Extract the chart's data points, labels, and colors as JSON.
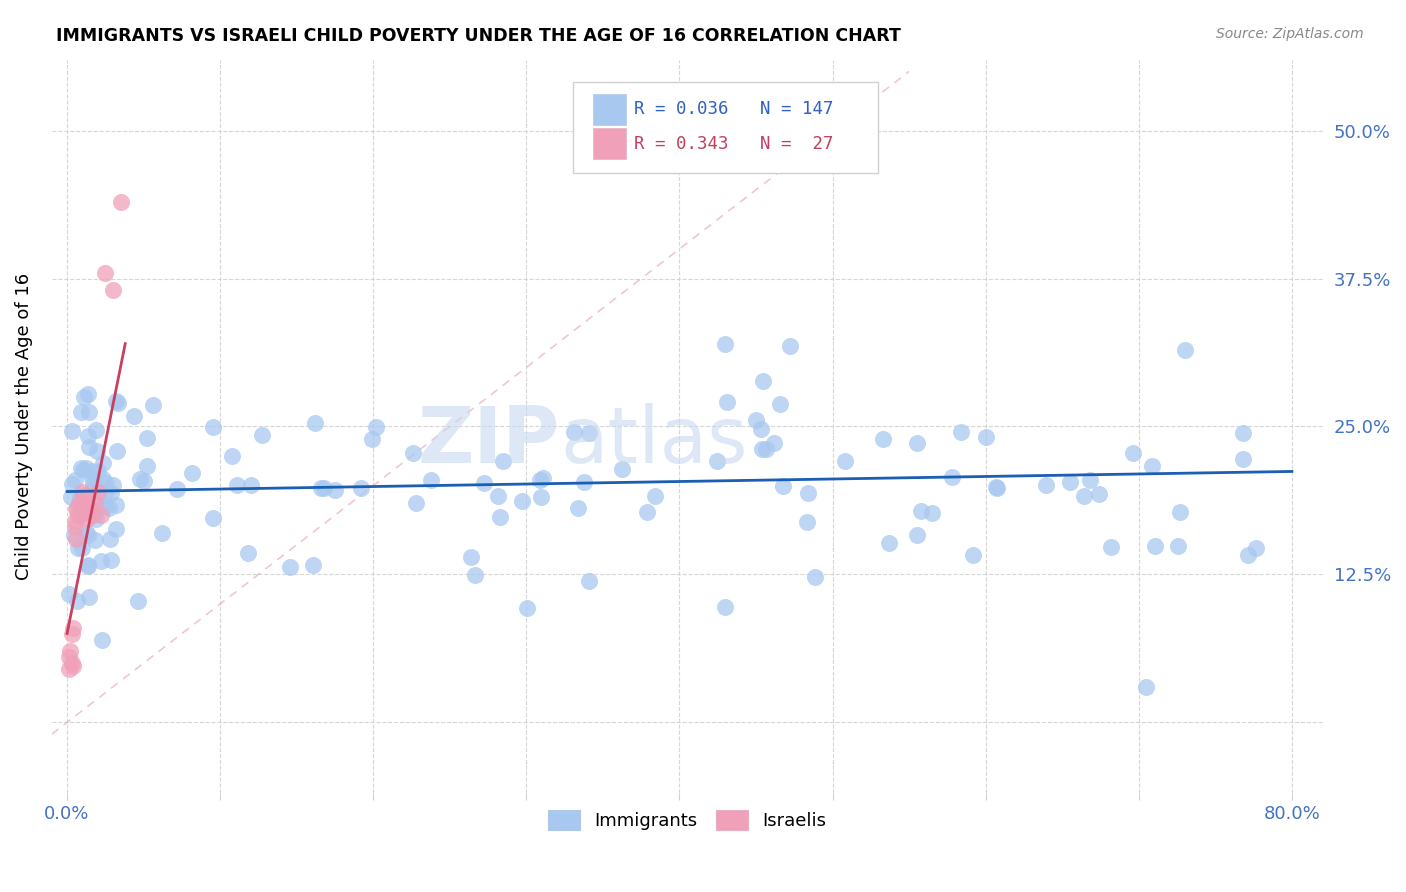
{
  "title": "IMMIGRANTS VS ISRAELI CHILD POVERTY UNDER THE AGE OF 16 CORRELATION CHART",
  "source": "Source: ZipAtlas.com",
  "ylabel": "Child Poverty Under the Age of 16",
  "R_immigrants": 0.036,
  "N_immigrants": 147,
  "R_israelis": 0.343,
  "N_israelis": 27,
  "blue_color": "#a8c8f0",
  "pink_color": "#f0a0b8",
  "blue_line_color": "#1a5fb4",
  "pink_line_color": "#c84060",
  "diagonal_color": "#f0b0c0",
  "watermark_zip": "ZIP",
  "watermark_atlas": "atlas",
  "legend_immigrants": "Immigrants",
  "legend_israelis": "Israelis",
  "ylim_low": -0.06,
  "ylim_high": 0.56,
  "xlim_low": -0.01,
  "xlim_high": 0.82,
  "yticks": [
    0.0,
    0.125,
    0.25,
    0.375,
    0.5
  ],
  "ytick_labels": [
    "",
    "12.5%",
    "25.0%",
    "37.5%",
    "50.0%"
  ],
  "xticks": [
    0.0,
    0.1,
    0.2,
    0.3,
    0.4,
    0.5,
    0.6,
    0.7,
    0.8
  ],
  "xtick_labels": [
    "0.0%",
    "",
    "",
    "",
    "",
    "",
    "",
    "",
    "80.0%"
  ]
}
